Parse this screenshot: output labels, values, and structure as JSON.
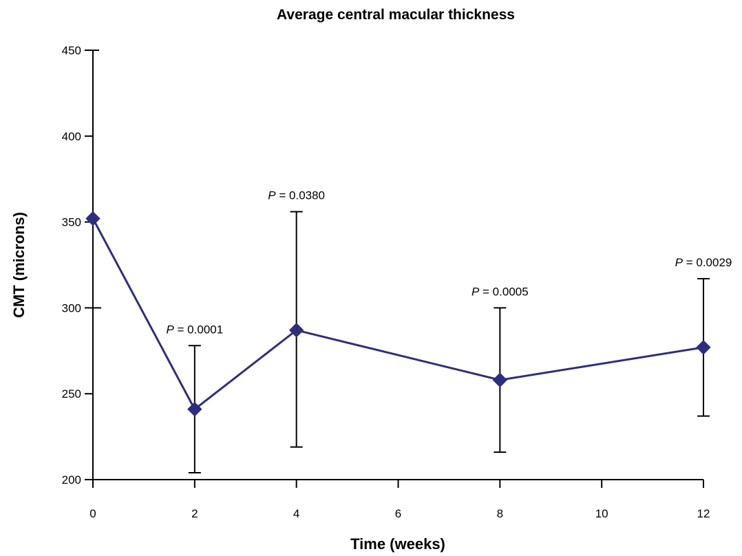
{
  "chart_data": {
    "type": "line",
    "title": "Average central macular thickness",
    "xlabel": "Time (weeks)",
    "ylabel": "CMT (microns)",
    "xlim": [
      0,
      12
    ],
    "ylim": [
      200,
      450
    ],
    "xticks": [
      0,
      2,
      4,
      6,
      8,
      10,
      12
    ],
    "yticks": [
      200,
      250,
      300,
      350,
      400,
      450
    ],
    "grid": false,
    "series": [
      {
        "x": [
          0,
          2,
          4,
          8,
          12
        ],
        "y": [
          352,
          241,
          287,
          258,
          277
        ],
        "err_low": [
          200,
          204,
          219,
          216,
          237
        ],
        "err_high": [
          450,
          278,
          356,
          300,
          317
        ]
      }
    ],
    "annotations": [
      {
        "x": 2,
        "p": "P",
        "text": " = 0.0001"
      },
      {
        "x": 4,
        "p": "P",
        "text": " = 0.0380"
      },
      {
        "x": 8,
        "p": "P",
        "text": " = 0.0005"
      },
      {
        "x": 12,
        "p": "P",
        "text": " = 0.0029"
      }
    ],
    "colors": {
      "series": "#2e2e7c",
      "marker": "#2e2e7c",
      "axis": "#000000"
    }
  }
}
